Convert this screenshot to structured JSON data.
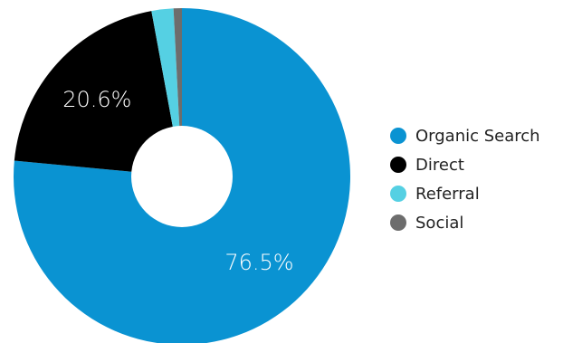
{
  "chart_data": {
    "type": "pie",
    "style": "donut",
    "categories": [
      "Organic Search",
      "Direct",
      "Referral",
      "Social"
    ],
    "values": [
      76.5,
      20.6,
      2.1,
      0.8
    ],
    "value_labels": [
      "76.5%",
      "20.6%",
      "",
      ""
    ],
    "colors": [
      "#0a93d2",
      "#000000",
      "#55d0e3",
      "#6d6d6d"
    ],
    "legend": "right",
    "title": ""
  }
}
